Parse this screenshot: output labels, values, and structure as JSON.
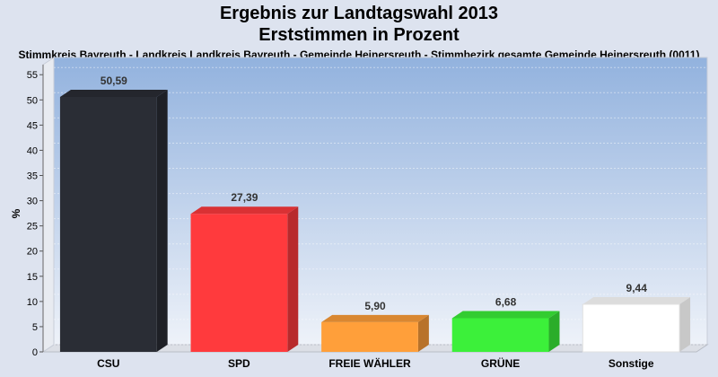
{
  "title": "Ergebnis zur Landtagswahl 2013",
  "subtitle": "Erststimmen in Prozent",
  "caption": "Stimmkreis Bayreuth - Landkreis Landkreis Bayreuth - Gemeinde Heinersreuth - Stimmbezirk gesamte Gemeinde Heinersreuth (0011)",
  "chart_data": {
    "type": "bar",
    "categories": [
      "CSU",
      "SPD",
      "FREIE WÄHLER",
      "GRÜNE",
      "Sonstige"
    ],
    "values": [
      50.59,
      27.39,
      5.9,
      6.68,
      9.44
    ],
    "value_labels": [
      "50,59",
      "27,39",
      "5,90",
      "6,68",
      "9,44"
    ],
    "ylabel": "%",
    "ylim": [
      0,
      57
    ],
    "yticks": [
      0,
      5,
      10,
      15,
      20,
      25,
      30,
      35,
      40,
      45,
      50,
      55
    ],
    "grid": true,
    "legend": "none",
    "colors": [
      "#2a2d35",
      "#ff3a3d",
      "#ff9f3a",
      "#3cf03a",
      "#ffffff"
    ]
  }
}
